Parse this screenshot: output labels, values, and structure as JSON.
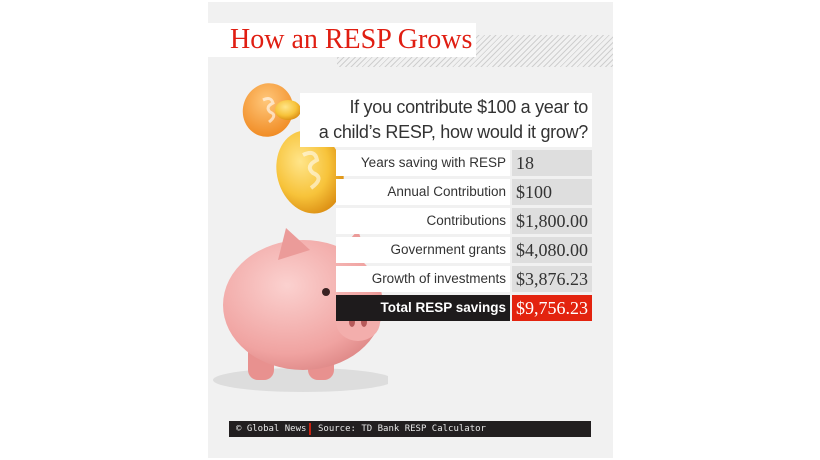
{
  "title": "How an RESP Grows",
  "question": [
    "If you contribute $100 a year to",
    "a child’s RESP, how would it grow?"
  ],
  "rows": [
    {
      "label": "Years saving with RESP",
      "value": "18"
    },
    {
      "label": "Annual Contribution",
      "value": "$100"
    },
    {
      "label": "Contributions",
      "value": "$1,800.00"
    },
    {
      "label": "Government grants",
      "value": "$4,080.00"
    },
    {
      "label": "Growth of investments",
      "value": "$3,876.23"
    }
  ],
  "total": {
    "label": "Total RESP savings",
    "value": "$9,756.23"
  },
  "footer": {
    "credit": "© Global News",
    "source": "Source: TD Bank RESP Calculator"
  },
  "colors": {
    "accent": "#e3230f",
    "dark": "#1e1b1c",
    "background": "#f1f1f1"
  },
  "icons": [
    "coin-icon",
    "piggy-bank-icon"
  ]
}
